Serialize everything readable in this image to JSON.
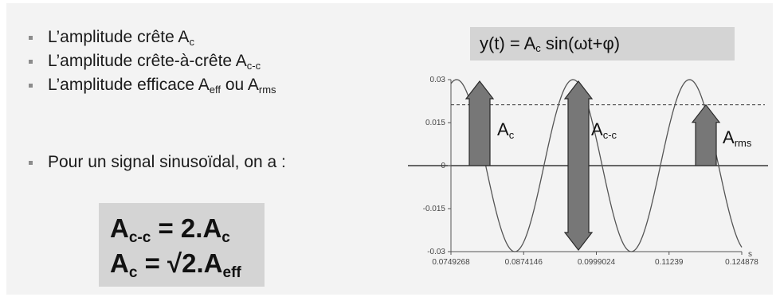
{
  "bullets": [
    {
      "main": "L’amplitude crête A",
      "sub": "c",
      "tail": ""
    },
    {
      "main": "L’amplitude crête-à-crête A",
      "sub": "c-c",
      "tail": ""
    },
    {
      "main": "L’amplitude efficace A",
      "sub": "eff",
      "tail": " ou A",
      "sub2": "rms"
    }
  ],
  "sinus_line": "Pour un signal sinusoïdal, on a :",
  "formulas": {
    "f1": {
      "a": "A",
      "a_sub": "c-c",
      "rest": " = 2.A",
      "rest_sub": "c"
    },
    "f2": {
      "a": "A",
      "a_sub": "c",
      "rest": " = √2.A",
      "rest_sub": "eff"
    }
  },
  "equation": {
    "pre": "y(t) = A",
    "sub": "c",
    "post": " sin(ωt+φ)"
  },
  "arrow_labels": {
    "ac": {
      "main": "A",
      "sub": "c"
    },
    "acc": {
      "main": "A",
      "sub": "c-c"
    },
    "arms": {
      "main": "A",
      "sub": "rms"
    }
  },
  "chart_data": {
    "type": "line",
    "amplitude": 0.03,
    "rms_level": 0.0212,
    "x_ticks": [
      "0.0749268",
      "0.0874146",
      "0.0999024",
      "0.11239",
      "0.124878"
    ],
    "x_tick_values": [
      0.0749268,
      0.0874146,
      0.0999024,
      0.11239,
      0.124878
    ],
    "x_unit": "s",
    "y_ticks": [
      "0.03",
      "0.015",
      "0",
      "-0.015",
      "-0.03"
    ],
    "y_tick_values": [
      0.03,
      0.015,
      0,
      -0.015,
      -0.03
    ],
    "xlim": [
      0.0749268,
      0.124878
    ],
    "ylim": [
      -0.03,
      0.03
    ],
    "period": 0.02,
    "phase_peak_x": 0.0759
  },
  "colors": {
    "arrow": "#777777",
    "arrow_stroke": "#2a2a2a",
    "curve": "#555555",
    "box": "#d4d4d4"
  }
}
